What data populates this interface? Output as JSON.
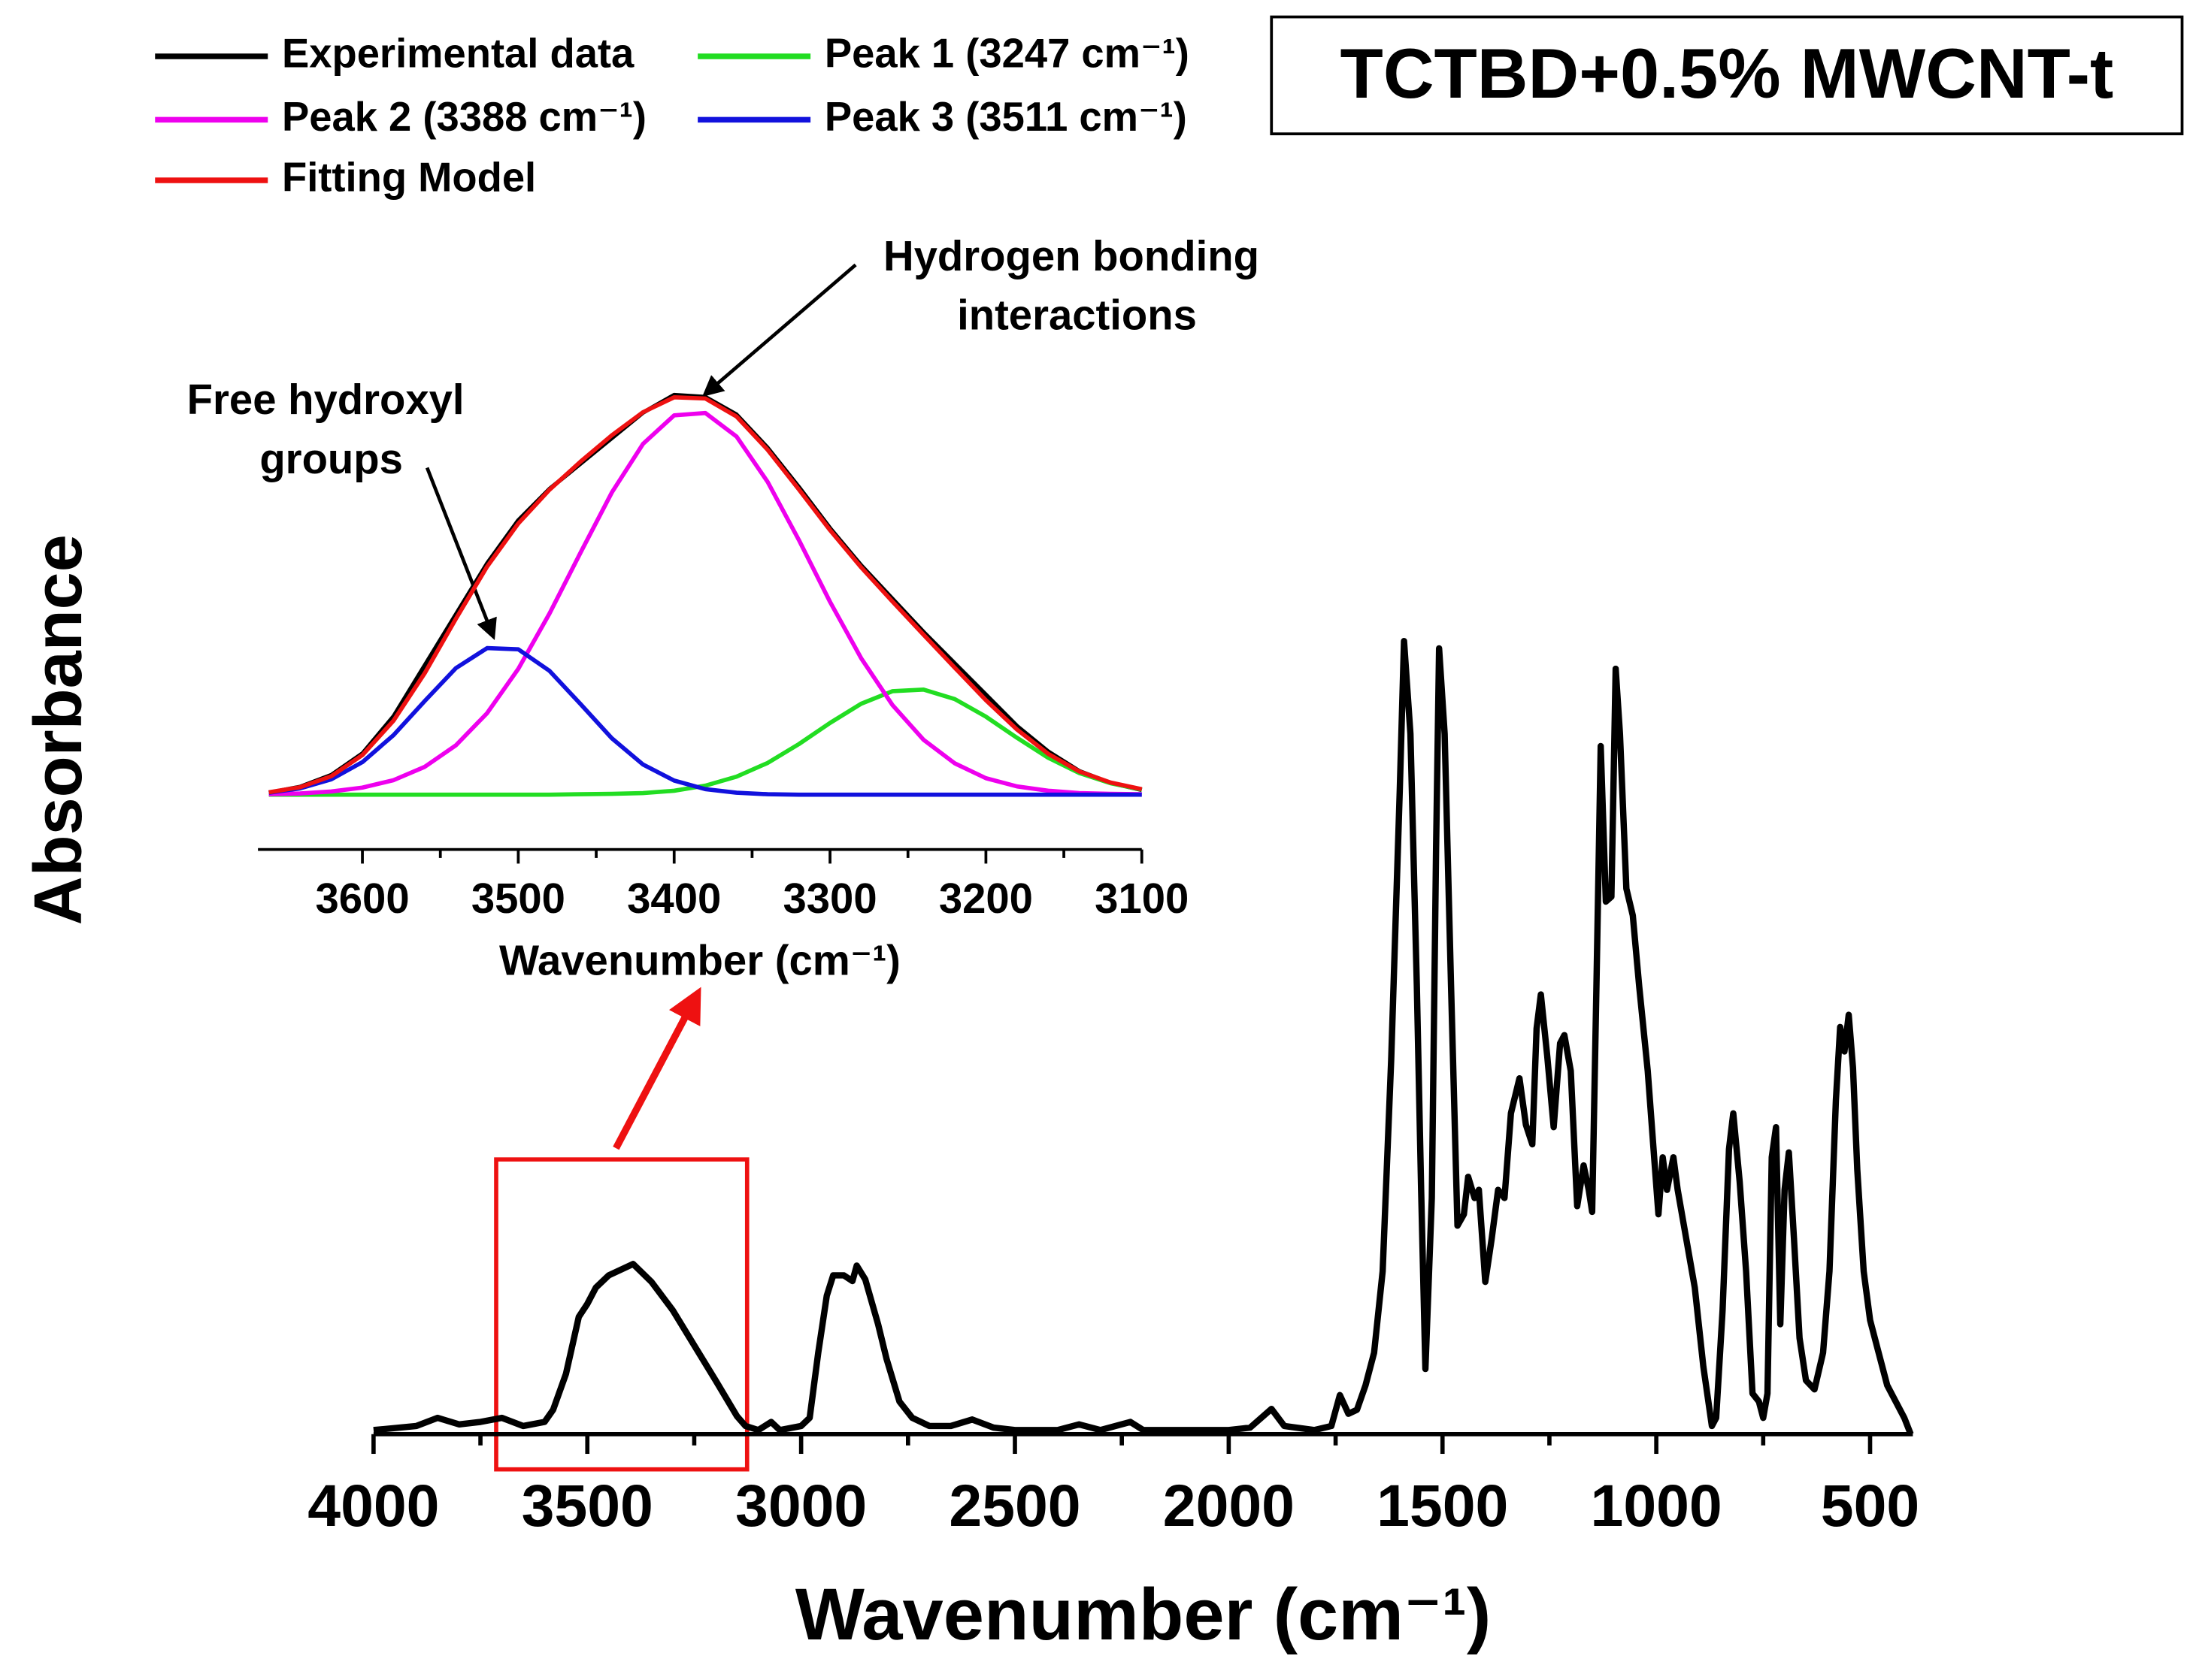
{
  "chart_data": [
    {
      "type": "line",
      "title": "TCTBD+0.5% MWCNT-t",
      "xlabel": "Wavenumber (cm⁻¹)",
      "ylabel": "Absorbance",
      "xlim": [
        4000,
        400
      ],
      "ylim": [
        0,
        1
      ],
      "xticks": [
        4000,
        3500,
        3000,
        2500,
        2000,
        1500,
        1000,
        500
      ],
      "color": "#000000",
      "x": [
        4000,
        3900,
        3850,
        3800,
        3750,
        3700,
        3650,
        3600,
        3580,
        3550,
        3520,
        3500,
        3480,
        3450,
        3393,
        3350,
        3300,
        3250,
        3200,
        3150,
        3130,
        3100,
        3070,
        3050,
        3000,
        2980,
        2960,
        2940,
        2925,
        2900,
        2880,
        2870,
        2850,
        2820,
        2800,
        2770,
        2740,
        2700,
        2650,
        2600,
        2550,
        2500,
        2400,
        2350,
        2300,
        2230,
        2200,
        2100,
        2000,
        1950,
        1900,
        1870,
        1800,
        1760,
        1740,
        1720,
        1700,
        1680,
        1660,
        1640,
        1620,
        1600,
        1590,
        1575,
        1560,
        1550,
        1540,
        1525,
        1515,
        1508,
        1495,
        1480,
        1465,
        1450,
        1440,
        1425,
        1415,
        1400,
        1385,
        1370,
        1355,
        1340,
        1320,
        1305,
        1290,
        1280,
        1270,
        1255,
        1240,
        1225,
        1215,
        1200,
        1185,
        1170,
        1158,
        1150,
        1140,
        1130,
        1118,
        1105,
        1095,
        1085,
        1070,
        1055,
        1040,
        1020,
        1005,
        995,
        985,
        975,
        960,
        950,
        930,
        910,
        890,
        870,
        860,
        845,
        830,
        820,
        805,
        790,
        775,
        760,
        750,
        740,
        730,
        720,
        710,
        700,
        690,
        678,
        665,
        650,
        630,
        610,
        595,
        580,
        570,
        560,
        550,
        540,
        530,
        515,
        500,
        480,
        460,
        440,
        420,
        405
      ],
      "values": [
        0.005,
        0.01,
        0.02,
        0.012,
        0.015,
        0.02,
        0.01,
        0.015,
        0.03,
        0.074,
        0.144,
        0.16,
        0.18,
        0.195,
        0.209,
        0.187,
        0.152,
        0.109,
        0.066,
        0.022,
        0.01,
        0.005,
        0.015,
        0.005,
        0.01,
        0.02,
        0.1,
        0.17,
        0.195,
        0.195,
        0.188,
        0.207,
        0.19,
        0.135,
        0.092,
        0.04,
        0.02,
        0.01,
        0.01,
        0.018,
        0.008,
        0.005,
        0.005,
        0.012,
        0.005,
        0.015,
        0.005,
        0.005,
        0.005,
        0.008,
        0.031,
        0.01,
        0.005,
        0.01,
        0.048,
        0.025,
        0.03,
        0.06,
        0.1,
        0.2,
        0.46,
        0.79,
        0.974,
        0.86,
        0.55,
        0.3,
        0.08,
        0.29,
        0.72,
        0.965,
        0.86,
        0.55,
        0.256,
        0.27,
        0.316,
        0.29,
        0.3,
        0.187,
        0.24,
        0.3,
        0.29,
        0.394,
        0.437,
        0.38,
        0.356,
        0.498,
        0.54,
        0.464,
        0.377,
        0.48,
        0.49,
        0.446,
        0.28,
        0.33,
        0.3,
        0.273,
        0.55,
        0.845,
        0.654,
        0.66,
        0.94,
        0.86,
        0.67,
        0.637,
        0.55,
        0.446,
        0.34,
        0.27,
        0.34,
        0.3,
        0.34,
        0.3,
        0.24,
        0.18,
        0.083,
        0.01,
        0.02,
        0.152,
        0.35,
        0.394,
        0.31,
        0.2,
        0.05,
        0.04,
        0.02,
        0.05,
        0.34,
        0.377,
        0.135,
        0.3,
        0.346,
        0.24,
        0.118,
        0.066,
        0.055,
        0.1,
        0.2,
        0.41,
        0.5,
        0.47,
        0.515,
        0.45,
        0.325,
        0.2,
        0.14,
        0.1,
        0.06,
        0.04,
        0.02,
        0
      ]
    },
    {
      "type": "line",
      "xlabel": "Wavenumber (cm⁻¹)",
      "xlim": [
        3667,
        3100
      ],
      "ylim": [
        -0.14,
        1.05
      ],
      "xticks": [
        3600,
        3500,
        3400,
        3300,
        3200,
        3100
      ],
      "x": [
        3660,
        3640,
        3620,
        3600,
        3580,
        3560,
        3540,
        3520,
        3500,
        3480,
        3460,
        3440,
        3420,
        3400,
        3380,
        3360,
        3340,
        3320,
        3300,
        3280,
        3260,
        3240,
        3220,
        3200,
        3180,
        3160,
        3140,
        3120,
        3100
      ],
      "series": [
        {
          "name": "Experimental data",
          "color": "#000000",
          "values": [
            0.005,
            0.02,
            0.05,
            0.105,
            0.2,
            0.33,
            0.46,
            0.59,
            0.7,
            0.78,
            0.845,
            0.91,
            0.975,
            1.02,
            1.015,
            0.97,
            0.885,
            0.785,
            0.68,
            0.585,
            0.5,
            0.415,
            0.335,
            0.255,
            0.175,
            0.11,
            0.06,
            0.03,
            0.012
          ]
        },
        {
          "name": "Peak 1 (3247 cm⁻¹)",
          "color": "#22dd22",
          "values": [
            0,
            0,
            0,
            0,
            0,
            0,
            0,
            0,
            0,
            0,
            0.001,
            0.002,
            0.004,
            0.01,
            0.023,
            0.046,
            0.081,
            0.129,
            0.183,
            0.232,
            0.264,
            0.268,
            0.244,
            0.199,
            0.145,
            0.094,
            0.055,
            0.029,
            0.013
          ]
        },
        {
          "name": "Peak 2 (3388 cm⁻¹)",
          "color": "#ee00ee",
          "values": [
            0.001,
            0.003,
            0.008,
            0.018,
            0.037,
            0.071,
            0.126,
            0.208,
            0.321,
            0.462,
            0.618,
            0.771,
            0.895,
            0.968,
            0.974,
            0.914,
            0.798,
            0.65,
            0.492,
            0.348,
            0.229,
            0.14,
            0.08,
            0.042,
            0.021,
            0.01,
            0.004,
            0.002,
            0.001
          ]
        },
        {
          "name": "Peak 3 (3511 cm⁻¹)",
          "color": "#1111dd",
          "values": [
            0.005,
            0.016,
            0.039,
            0.083,
            0.152,
            0.239,
            0.323,
            0.374,
            0.371,
            0.316,
            0.231,
            0.144,
            0.077,
            0.036,
            0.014,
            0.005,
            0.001,
            0,
            0,
            0,
            0,
            0,
            0,
            0,
            0,
            0,
            0,
            0,
            0
          ]
        },
        {
          "name": "Fitting Model",
          "color": "#ee1111",
          "values": [
            0.006,
            0.019,
            0.047,
            0.101,
            0.189,
            0.31,
            0.449,
            0.582,
            0.692,
            0.778,
            0.85,
            0.917,
            0.976,
            1.014,
            1.011,
            0.965,
            0.88,
            0.779,
            0.675,
            0.58,
            0.493,
            0.408,
            0.324,
            0.241,
            0.166,
            0.104,
            0.059,
            0.031,
            0.014
          ]
        }
      ],
      "annotations": [
        {
          "lines": [
            "Hydrogen bonding",
            "interactions"
          ]
        },
        {
          "lines": [
            "Free hydroxyl",
            "groups"
          ]
        }
      ]
    }
  ]
}
